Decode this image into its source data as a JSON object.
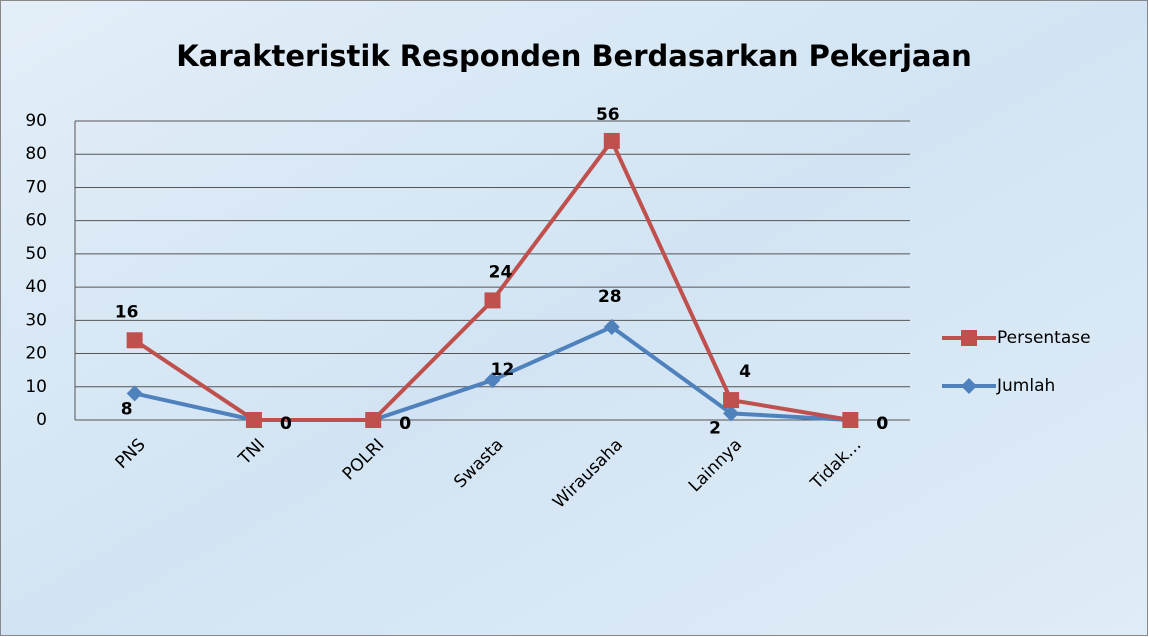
{
  "chart_data": {
    "type": "line",
    "stacked": true,
    "title": "Karakteristik Responden Berdasarkan Pekerjaan",
    "categories": [
      "PNS",
      "TNI",
      "POLRI",
      "Swasta",
      "Wirausaha",
      "Lainnya",
      "Tidak…"
    ],
    "series": [
      {
        "name": "Jumlah",
        "color": "#4f81bd",
        "marker": "diamond",
        "values": [
          8,
          0,
          0,
          12,
          28,
          2,
          0
        ]
      },
      {
        "name": "Persentase",
        "color": "#c0504d",
        "marker": "square",
        "values": [
          16,
          0,
          0,
          24,
          56,
          4,
          0
        ]
      }
    ],
    "ylim": [
      0,
      90
    ],
    "yticks": [
      0,
      10,
      20,
      30,
      40,
      50,
      60,
      70,
      80,
      90
    ],
    "grid": true,
    "legend": "right"
  }
}
